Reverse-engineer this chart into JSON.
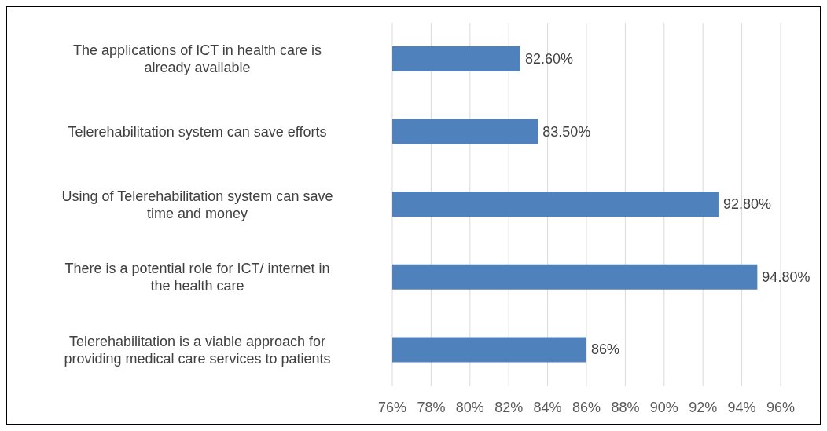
{
  "chart_data": {
    "type": "bar",
    "orientation": "horizontal",
    "categories": [
      "The applications of ICT in health care is already available",
      "Telerehabilitation system can save efforts",
      "Using of Telerehabilitation system can save time and money",
      "There is a potential role for ICT/ internet in the health care",
      "Telerehabilitation is a viable approach for providing medical care services to patients"
    ],
    "values": [
      82.6,
      83.5,
      92.8,
      94.8,
      86
    ],
    "value_labels": [
      "82.60%",
      "83.50%",
      "92.80%",
      "94.80%",
      "86%"
    ],
    "color": "#4f81bd",
    "xlim": [
      76,
      96
    ],
    "xticks": [
      {
        "value": 76,
        "label": "76%"
      },
      {
        "value": 78,
        "label": "78%"
      },
      {
        "value": 80,
        "label": "80%"
      },
      {
        "value": 82,
        "label": "82%"
      },
      {
        "value": 84,
        "label": "84%"
      },
      {
        "value": 86,
        "label": "86%"
      },
      {
        "value": 88,
        "label": "88%"
      },
      {
        "value": 90,
        "label": "90%"
      },
      {
        "value": 92,
        "label": "92%"
      },
      {
        "value": 94,
        "label": "94%"
      },
      {
        "value": 96,
        "label": "96%"
      }
    ],
    "grid": "x",
    "legend": false
  }
}
